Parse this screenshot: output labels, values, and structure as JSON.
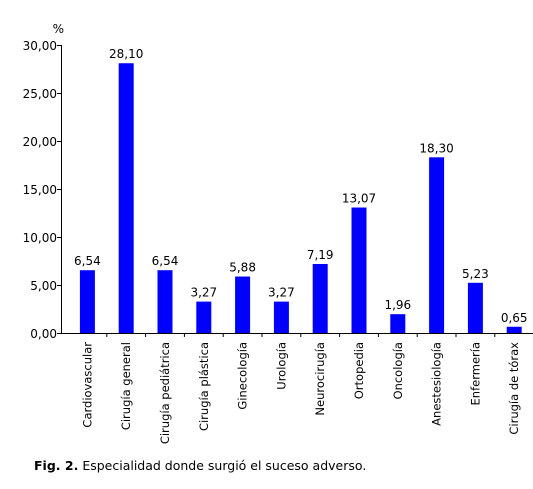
{
  "chart_data": {
    "type": "bar",
    "unit": "%",
    "categories": [
      "Cardiovascular",
      "Cirugía general",
      "Cirugía pediátrica",
      "Cirugía plástica",
      "Ginecología",
      "Urología",
      "Neurocirugía",
      "Ortopedia",
      "Oncología",
      "Anestesiología",
      "Enfermería",
      "Cirugía de tórax"
    ],
    "values": [
      6.54,
      28.1,
      6.54,
      3.27,
      5.88,
      3.27,
      7.19,
      13.07,
      1.96,
      18.3,
      5.23,
      0.65
    ],
    "data_labels": [
      "6,54",
      "28,10",
      "6,54",
      "3,27",
      "5,88",
      "3,27",
      "7,19",
      "13,07",
      "1,96",
      "18,30",
      "5,23",
      "0,65"
    ],
    "yticks": [
      0,
      5,
      10,
      15,
      20,
      25,
      30
    ],
    "ytick_labels": [
      "0,00",
      "5,00",
      "10,00",
      "15,00",
      "20,00",
      "25,00",
      "30,00"
    ],
    "ylim": [
      0,
      30
    ],
    "bar_color": "#0000ff",
    "grid": false,
    "legend": false
  },
  "caption": {
    "label": "Fig. 2.",
    "text": "Especialidad donde surgió el suceso adverso."
  }
}
